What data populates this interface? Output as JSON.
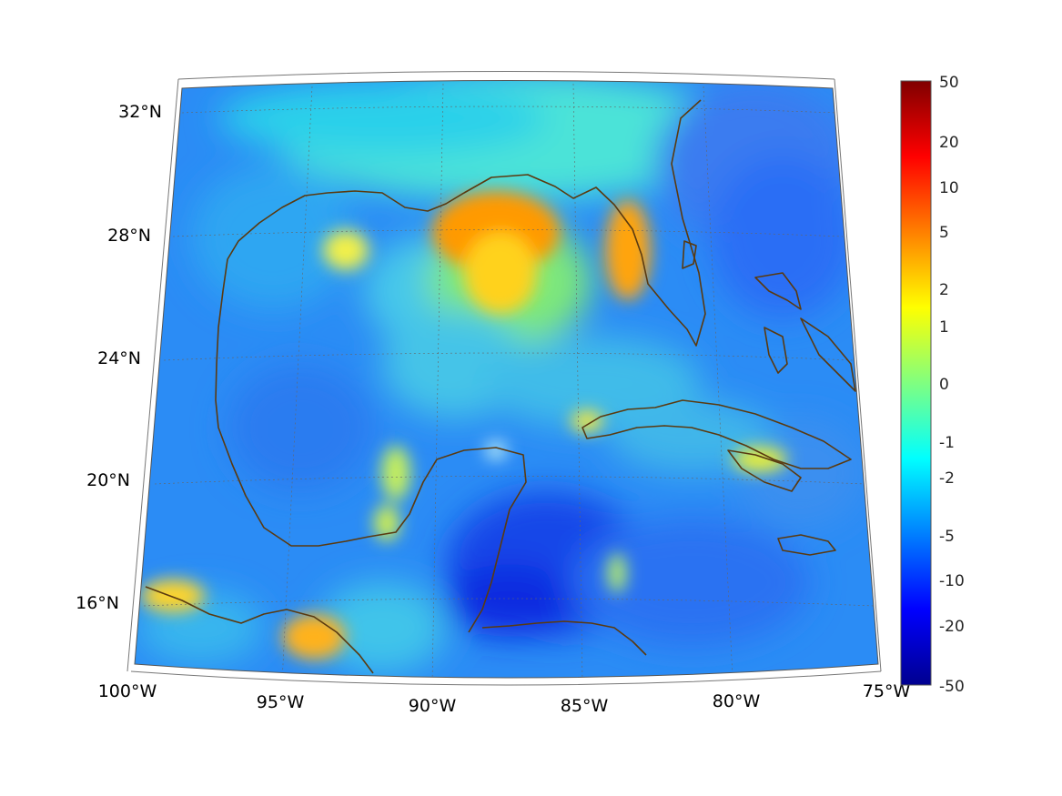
{
  "map": {
    "region": "Gulf of Mexico and Caribbean",
    "projection": "conic",
    "lon_range": [
      -100,
      -75
    ],
    "lat_range": [
      14,
      33
    ],
    "gridlines": true,
    "coastline_color": "#5a3a10",
    "longitude_labels": [
      "100°W",
      "95°W",
      "90°W",
      "85°W",
      "80°W",
      "75°W"
    ],
    "latitude_labels": [
      "32°N",
      "28°N",
      "24°N",
      "20°N",
      "16°N"
    ]
  },
  "colorbar": {
    "colormap": "jet",
    "placement": "right",
    "tick_labels": [
      "50",
      "20",
      "10",
      "5",
      "2",
      "1",
      "0",
      "-1",
      "-2",
      "-5",
      "-10",
      "-20",
      "-50"
    ],
    "colors": [
      "#00008f",
      "#0000ff",
      "#0080ff",
      "#00ffff",
      "#80ff80",
      "#ffff00",
      "#ff8000",
      "#ff0000",
      "#800000"
    ]
  }
}
